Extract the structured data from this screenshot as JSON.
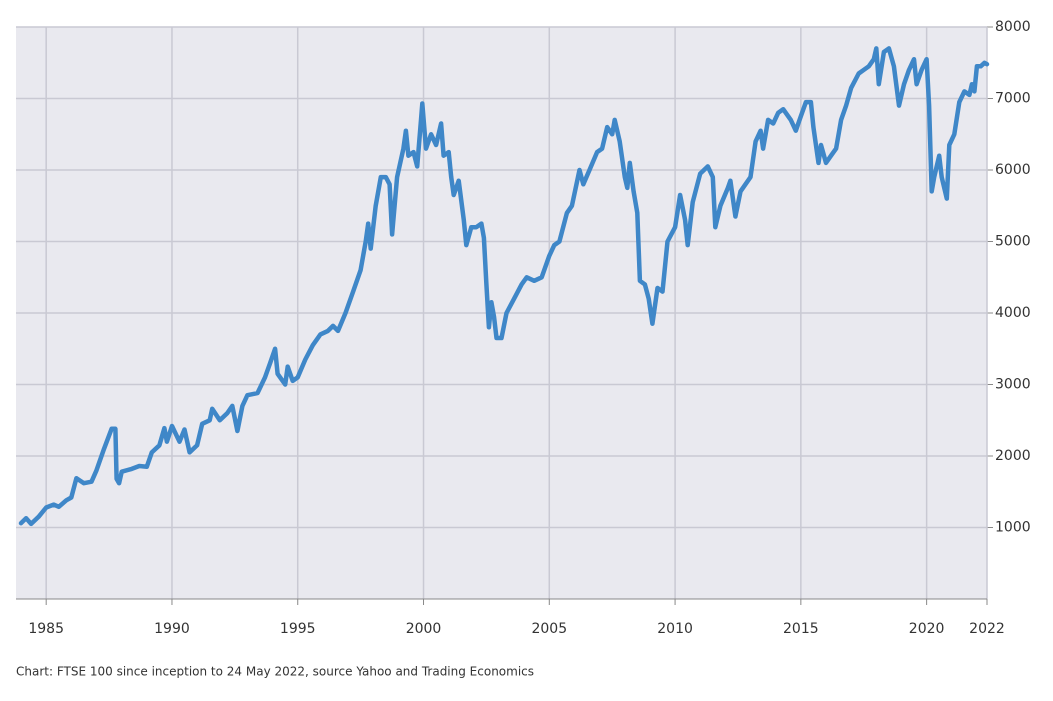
{
  "chart_data": {
    "type": "line",
    "caption": "Chart: FTSE 100 since inception to 24 May 2022, source Yahoo and Trading Economics",
    "x": [
      1984.0,
      1984.2,
      1984.4,
      1984.7,
      1985.0,
      1985.3,
      1985.5,
      1985.8,
      1986.0,
      1986.2,
      1986.5,
      1986.8,
      1987.0,
      1987.3,
      1987.6,
      1987.75,
      1987.8,
      1987.9,
      1988.0,
      1988.4,
      1988.7,
      1989.0,
      1989.2,
      1989.5,
      1989.7,
      1989.8,
      1990.0,
      1990.3,
      1990.5,
      1990.7,
      1991.0,
      1991.2,
      1991.5,
      1991.6,
      1991.9,
      1992.2,
      1992.4,
      1992.6,
      1992.8,
      1993.0,
      1993.4,
      1993.7,
      1993.9,
      1994.1,
      1994.2,
      1994.5,
      1994.6,
      1994.8,
      1995.0,
      1995.3,
      1995.6,
      1995.9,
      1996.2,
      1996.4,
      1996.6,
      1996.9,
      1997.2,
      1997.5,
      1997.7,
      1997.8,
      1997.9,
      1998.1,
      1998.3,
      1998.5,
      1998.65,
      1998.75,
      1998.95,
      1999.2,
      1999.3,
      1999.4,
      1999.6,
      1999.75,
      1999.9,
      1999.95,
      2000.1,
      2000.3,
      2000.5,
      2000.7,
      2000.8,
      2001.0,
      2001.1,
      2001.2,
      2001.4,
      2001.6,
      2001.7,
      2001.9,
      2002.1,
      2002.3,
      2002.4,
      2002.5,
      2002.6,
      2002.7,
      2002.8,
      2002.9,
      2003.1,
      2003.3,
      2003.6,
      2003.9,
      2004.1,
      2004.4,
      2004.7,
      2005.0,
      2005.2,
      2005.4,
      2005.7,
      2005.9,
      2006.2,
      2006.35,
      2006.6,
      2006.9,
      2007.1,
      2007.3,
      2007.5,
      2007.6,
      2007.8,
      2008.0,
      2008.1,
      2008.2,
      2008.35,
      2008.5,
      2008.6,
      2008.8,
      2008.95,
      2009.1,
      2009.3,
      2009.5,
      2009.7,
      2010.0,
      2010.2,
      2010.4,
      2010.5,
      2010.7,
      2011.0,
      2011.3,
      2011.5,
      2011.6,
      2011.8,
      2012.1,
      2012.2,
      2012.4,
      2012.6,
      2013.0,
      2013.2,
      2013.4,
      2013.5,
      2013.7,
      2013.9,
      2014.1,
      2014.3,
      2014.6,
      2014.8,
      2015.0,
      2015.2,
      2015.4,
      2015.5,
      2015.7,
      2015.8,
      2016.0,
      2016.2,
      2016.4,
      2016.6,
      2016.8,
      2017.0,
      2017.3,
      2017.5,
      2017.7,
      2017.9,
      2018.0,
      2018.1,
      2018.3,
      2018.5,
      2018.7,
      2018.9,
      2019.1,
      2019.3,
      2019.5,
      2019.6,
      2019.8,
      2020.0,
      2020.1,
      2020.2,
      2020.3,
      2020.5,
      2020.6,
      2020.8,
      2020.9,
      2021.1,
      2021.3,
      2021.5,
      2021.7,
      2021.8,
      2021.9,
      2022.0,
      2022.15,
      2022.3,
      2022.4
    ],
    "series": [
      {
        "name": "FTSE 100",
        "color": "#3f87c8",
        "values": [
          1060,
          1130,
          1050,
          1150,
          1280,
          1320,
          1290,
          1380,
          1420,
          1690,
          1620,
          1640,
          1800,
          2100,
          2380,
          2380,
          1680,
          1620,
          1780,
          1820,
          1860,
          1850,
          2050,
          2150,
          2390,
          2200,
          2420,
          2200,
          2370,
          2050,
          2150,
          2450,
          2500,
          2660,
          2500,
          2600,
          2700,
          2350,
          2700,
          2850,
          2880,
          3100,
          3300,
          3500,
          3150,
          3000,
          3250,
          3050,
          3100,
          3350,
          3550,
          3700,
          3750,
          3820,
          3750,
          4000,
          4300,
          4600,
          5000,
          5250,
          4900,
          5500,
          5900,
          5900,
          5800,
          5100,
          5900,
          6300,
          6550,
          6200,
          6250,
          6050,
          6700,
          6930,
          6300,
          6500,
          6350,
          6650,
          6200,
          6250,
          5900,
          5650,
          5850,
          5300,
          4950,
          5200,
          5200,
          5250,
          5050,
          4400,
          3800,
          4150,
          3950,
          3650,
          3650,
          4000,
          4200,
          4400,
          4500,
          4450,
          4500,
          4800,
          4950,
          5000,
          5400,
          5500,
          6000,
          5800,
          6000,
          6250,
          6300,
          6600,
          6500,
          6700,
          6400,
          5900,
          5750,
          6100,
          5700,
          5400,
          4450,
          4400,
          4200,
          3850,
          4350,
          4300,
          5000,
          5200,
          5650,
          5300,
          4950,
          5550,
          5950,
          6050,
          5900,
          5200,
          5500,
          5750,
          5850,
          5350,
          5700,
          5900,
          6400,
          6550,
          6300,
          6700,
          6650,
          6800,
          6850,
          6700,
          6550,
          6750,
          6950,
          6950,
          6600,
          6100,
          6350,
          6100,
          6200,
          6300,
          6700,
          6900,
          7150,
          7350,
          7400,
          7450,
          7550,
          7700,
          7200,
          7650,
          7700,
          7450,
          6900,
          7200,
          7400,
          7550,
          7200,
          7400,
          7550,
          6900,
          5700,
          5900,
          6200,
          5900,
          5600,
          6350,
          6500,
          6950,
          7100,
          7050,
          7200,
          7100,
          7450,
          7450,
          7500,
          7480
        ]
      }
    ],
    "xlim": [
      1983.8,
      2022.4
    ],
    "xticks": [
      1985,
      1990,
      1995,
      2000,
      2005,
      2010,
      2015,
      2020,
      {
        "value": 2022.4,
        "label": "2022"
      }
    ],
    "ylim": [
      0,
      8000
    ],
    "yticks": [
      1000,
      2000,
      3000,
      4000,
      5000,
      6000,
      7000,
      8000
    ],
    "grid": true
  }
}
